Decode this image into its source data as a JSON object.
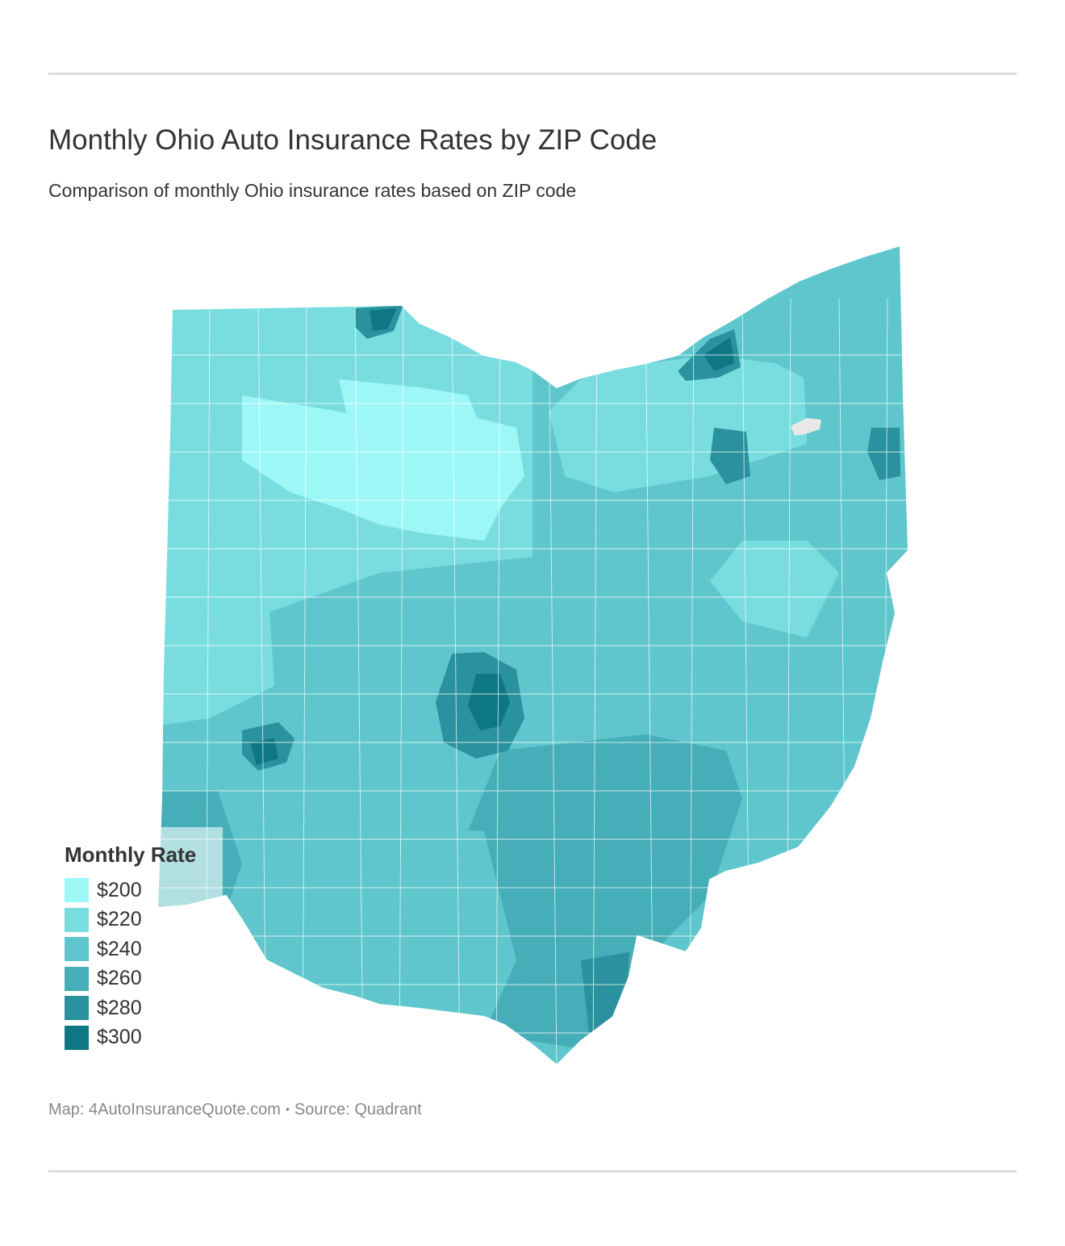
{
  "header": {
    "title": "Monthly Ohio Auto Insurance Rates by ZIP Code",
    "subtitle": "Comparison of monthly Ohio insurance rates based on ZIP code"
  },
  "legend": {
    "title": "Monthly Rate",
    "items": [
      {
        "label": "$200",
        "color": "#9ef7f7"
      },
      {
        "label": "$220",
        "color": "#79dde0"
      },
      {
        "label": "$240",
        "color": "#5ec6cc"
      },
      {
        "label": "$260",
        "color": "#45aeb8"
      },
      {
        "label": "$280",
        "color": "#2a929e"
      },
      {
        "label": "$300",
        "color": "#0e7784"
      }
    ]
  },
  "footer": {
    "map_credit": "Map: 4AutoInsuranceQuote.com",
    "separator": "•",
    "source": "Source: Quadrant"
  }
}
